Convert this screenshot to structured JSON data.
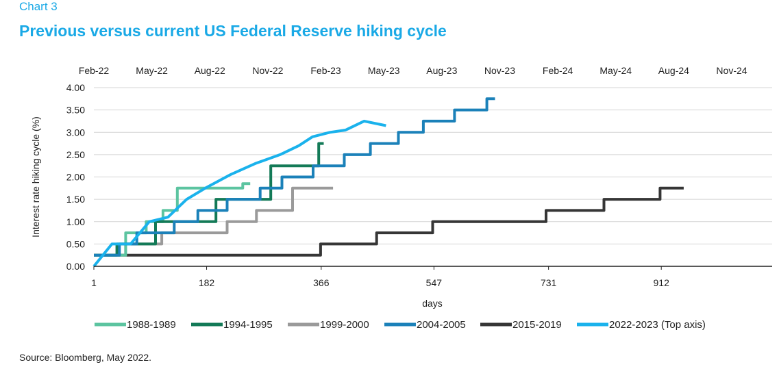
{
  "header": {
    "chart_number": "Chart 3",
    "title": "Previous versus current US Federal Reserve hiking cycle"
  },
  "footer": {
    "source": "Source: Bloomberg, May 2022."
  },
  "chart_data": {
    "type": "line",
    "title": "Previous versus current US Federal Reserve hiking cycle",
    "xlabel": "days",
    "ylabel": "Interest rate hiking cycle (%)",
    "xlim": [
      1,
      1090
    ],
    "ylim": [
      0,
      4
    ],
    "x_ticks": [
      1,
      182,
      366,
      547,
      731,
      912
    ],
    "y_ticks": [
      "0.00",
      "0.50",
      "1.00",
      "1.50",
      "2.00",
      "2.50",
      "3.00",
      "3.50",
      "4.00"
    ],
    "top_axis_ticks": [
      "Feb-22",
      "May-22",
      "Aug-22",
      "Nov-22",
      "Feb-23",
      "May-23",
      "Aug-23",
      "Nov-23",
      "Feb-24",
      "May-24",
      "Aug-24",
      "Nov-24"
    ],
    "grid": true,
    "legend_position": "bottom",
    "series": [
      {
        "name": "2015-2019",
        "color": "#363636",
        "points": [
          [
            1,
            0.25
          ],
          [
            365,
            0.25
          ],
          [
            365,
            0.5
          ],
          [
            455,
            0.5
          ],
          [
            455,
            0.75
          ],
          [
            545,
            0.75
          ],
          [
            545,
            1.0
          ],
          [
            727,
            1.0
          ],
          [
            727,
            1.25
          ],
          [
            820,
            1.25
          ],
          [
            820,
            1.5
          ],
          [
            910,
            1.5
          ],
          [
            910,
            1.75
          ],
          [
            948,
            1.75
          ]
        ]
      },
      {
        "name": "1999-2000",
        "color": "#9a9a9a",
        "points": [
          [
            1,
            0.25
          ],
          [
            52,
            0.25
          ],
          [
            52,
            0.5
          ],
          [
            110,
            0.5
          ],
          [
            110,
            0.75
          ],
          [
            215,
            0.75
          ],
          [
            215,
            1.0
          ],
          [
            262,
            1.0
          ],
          [
            262,
            1.25
          ],
          [
            320,
            1.25
          ],
          [
            320,
            1.75
          ],
          [
            385,
            1.75
          ]
        ]
      },
      {
        "name": "1988-1989",
        "color": "#5cc4a0",
        "points": [
          [
            1,
            0.25
          ],
          [
            52,
            0.25
          ],
          [
            52,
            0.75
          ],
          [
            85,
            0.75
          ],
          [
            85,
            1.0
          ],
          [
            112,
            1.0
          ],
          [
            112,
            1.25
          ],
          [
            135,
            1.25
          ],
          [
            135,
            1.75
          ],
          [
            240,
            1.75
          ],
          [
            240,
            1.85
          ],
          [
            252,
            1.85
          ]
        ]
      },
      {
        "name": "1994-1995",
        "color": "#137a57",
        "points": [
          [
            1,
            0.25
          ],
          [
            38,
            0.25
          ],
          [
            38,
            0.5
          ],
          [
            100,
            0.5
          ],
          [
            100,
            1.0
          ],
          [
            197,
            1.0
          ],
          [
            197,
            1.5
          ],
          [
            285,
            1.5
          ],
          [
            285,
            2.25
          ],
          [
            362,
            2.25
          ],
          [
            362,
            2.75
          ],
          [
            370,
            2.75
          ]
        ]
      },
      {
        "name": "2004-2005",
        "color": "#1b81b9",
        "points": [
          [
            1,
            0.25
          ],
          [
            42,
            0.25
          ],
          [
            42,
            0.5
          ],
          [
            70,
            0.5
          ],
          [
            70,
            0.75
          ],
          [
            130,
            0.75
          ],
          [
            130,
            1.0
          ],
          [
            168,
            1.0
          ],
          [
            168,
            1.25
          ],
          [
            215,
            1.25
          ],
          [
            215,
            1.5
          ],
          [
            268,
            1.5
          ],
          [
            268,
            1.75
          ],
          [
            303,
            1.75
          ],
          [
            303,
            2.0
          ],
          [
            353,
            2.0
          ],
          [
            353,
            2.25
          ],
          [
            403,
            2.25
          ],
          [
            403,
            2.5
          ],
          [
            445,
            2.5
          ],
          [
            445,
            2.75
          ],
          [
            490,
            2.75
          ],
          [
            490,
            3.0
          ],
          [
            530,
            3.0
          ],
          [
            530,
            3.25
          ],
          [
            580,
            3.25
          ],
          [
            580,
            3.5
          ],
          [
            632,
            3.5
          ],
          [
            632,
            3.75
          ],
          [
            645,
            3.75
          ]
        ]
      },
      {
        "name": "2022-2023 (Top axis)",
        "color": "#1ab2ec",
        "points": [
          [
            1,
            0.0
          ],
          [
            30,
            0.5
          ],
          [
            60,
            0.5
          ],
          [
            90,
            1.0
          ],
          [
            120,
            1.1
          ],
          [
            150,
            1.5
          ],
          [
            180,
            1.75
          ],
          [
            220,
            2.05
          ],
          [
            260,
            2.3
          ],
          [
            300,
            2.5
          ],
          [
            330,
            2.7
          ],
          [
            352,
            2.9
          ],
          [
            380,
            3.0
          ],
          [
            405,
            3.05
          ],
          [
            435,
            3.25
          ],
          [
            470,
            3.15
          ]
        ]
      }
    ]
  },
  "legend": [
    {
      "label": "1988-1989",
      "color": "#5cc4a0"
    },
    {
      "label": "1994-1995",
      "color": "#137a57"
    },
    {
      "label": "1999-2000",
      "color": "#9a9a9a"
    },
    {
      "label": "2004-2005",
      "color": "#1b81b9"
    },
    {
      "label": "2015-2019",
      "color": "#363636"
    },
    {
      "label": "2022-2023 (Top axis)",
      "color": "#1ab2ec"
    }
  ]
}
